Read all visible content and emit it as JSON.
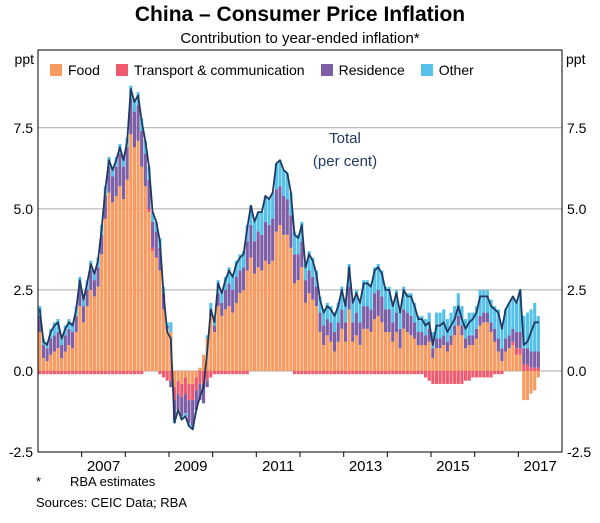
{
  "title": "China – Consumer Price Inflation",
  "subtitle": "Contribution to year-ended inflation*",
  "axis": {
    "unit_left": "ppt",
    "unit_right": "ppt"
  },
  "annotation": {
    "line1": "Total",
    "line2": "(per cent)"
  },
  "legend": {
    "items": [
      {
        "label": "Food",
        "color": "#F89B61"
      },
      {
        "label": "Transport & communication",
        "color": "#EF5A6E"
      },
      {
        "label": "Residence",
        "color": "#7C5FA5"
      },
      {
        "label": "Other",
        "color": "#56C1E8"
      }
    ]
  },
  "footnotes": {
    "marker": "*",
    "text": "RBA estimates",
    "sources": "Sources: CEIC Data; RBA"
  },
  "chart_data": {
    "type": "bar",
    "subtype": "stacked-bar-with-line",
    "title": "China – Consumer Price Inflation",
    "subtitle": "Contribution to year-ended inflation*",
    "ylabel": "ppt",
    "ylim": [
      -2.5,
      9.9
    ],
    "yticks": [
      -2.5,
      0.0,
      2.5,
      5.0,
      7.5
    ],
    "x_start": "2006-01",
    "x_end": "2017-06",
    "frequency": "monthly",
    "xtick_years": [
      2007,
      2009,
      2011,
      2013,
      2015,
      2017
    ],
    "grid": true,
    "legend_position": "top",
    "series": [
      {
        "name": "Food",
        "type": "bar",
        "color": "#F89B61",
        "values": [
          1.2,
          0.4,
          0.3,
          0.5,
          0.6,
          0.7,
          0.4,
          0.6,
          0.8,
          0.7,
          1.2,
          2.0,
          1.5,
          2.0,
          2.5,
          2.3,
          2.6,
          3.6,
          4.7,
          5.5,
          5.2,
          5.4,
          5.7,
          5.3,
          5.9,
          7.3,
          6.9,
          7.1,
          6.3,
          5.7,
          4.9,
          3.7,
          3.5,
          3.1,
          1.9,
          1.3,
          1.2,
          -0.5,
          -0.3,
          -0.4,
          -0.2,
          -0.4,
          -0.4,
          -0.2,
          0.1,
          0.5,
          1.0,
          1.7,
          1.2,
          2.0,
          1.7,
          1.9,
          2.0,
          1.8,
          2.1,
          2.4,
          2.5,
          3.1,
          3.5,
          3.0,
          3.2,
          3.1,
          3.4,
          3.3,
          3.4,
          4.3,
          4.5,
          4.2,
          4.2,
          3.8,
          2.7,
          2.8,
          3.2,
          2.1,
          2.4,
          2.2,
          2.0,
          1.2,
          0.8,
          1.1,
          0.9,
          0.6,
          0.9,
          1.3,
          0.9,
          1.9,
          0.9,
          1.1,
          0.8,
          1.3,
          1.3,
          1.2,
          1.6,
          1.7,
          1.5,
          1.2,
          1.2,
          0.9,
          1.2,
          0.7,
          1.3,
          1.2,
          1.1,
          1.0,
          0.8,
          0.8,
          0.8,
          0.9,
          0.4,
          0.7,
          0.7,
          0.8,
          0.6,
          0.8,
          1.1,
          1.4,
          1.1,
          0.7,
          0.8,
          0.8,
          1.0,
          1.4,
          1.5,
          1.5,
          1.2,
          0.9,
          0.6,
          0.3,
          0.6,
          0.7,
          0.8,
          0.5,
          0.5,
          -0.9,
          -0.9,
          -0.7,
          -0.6,
          -0.2
        ]
      },
      {
        "name": "Transport & communication",
        "type": "bar",
        "color": "#EF5A6E",
        "values": [
          -0.1,
          -0.1,
          -0.1,
          -0.1,
          -0.1,
          -0.1,
          -0.1,
          -0.1,
          -0.1,
          -0.1,
          -0.1,
          -0.1,
          -0.1,
          -0.1,
          -0.1,
          -0.1,
          -0.1,
          -0.1,
          -0.1,
          -0.1,
          -0.1,
          -0.1,
          -0.1,
          -0.1,
          -0.1,
          -0.1,
          -0.1,
          -0.1,
          -0.1,
          0.0,
          0.1,
          0.1,
          0.0,
          -0.1,
          -0.2,
          -0.3,
          -0.3,
          -0.4,
          -0.4,
          -0.4,
          -0.5,
          -0.5,
          -0.5,
          -0.4,
          -0.4,
          -0.4,
          -0.3,
          -0.2,
          -0.1,
          -0.1,
          -0.1,
          -0.1,
          -0.1,
          -0.1,
          -0.1,
          -0.1,
          -0.1,
          -0.1,
          0.0,
          0.0,
          0.0,
          0.0,
          0.0,
          0.0,
          0.0,
          0.0,
          0.0,
          0.0,
          0.0,
          0.0,
          -0.1,
          -0.1,
          -0.1,
          -0.1,
          -0.1,
          -0.1,
          -0.1,
          -0.1,
          -0.1,
          -0.1,
          -0.1,
          -0.1,
          -0.1,
          -0.1,
          -0.1,
          -0.1,
          -0.1,
          -0.1,
          -0.1,
          -0.1,
          -0.1,
          -0.1,
          -0.1,
          -0.1,
          -0.1,
          -0.1,
          -0.1,
          -0.1,
          -0.1,
          -0.1,
          -0.1,
          -0.1,
          -0.1,
          -0.1,
          -0.1,
          -0.1,
          -0.2,
          -0.3,
          -0.4,
          -0.4,
          -0.4,
          -0.4,
          -0.4,
          -0.4,
          -0.4,
          -0.4,
          -0.4,
          -0.3,
          -0.3,
          -0.2,
          -0.2,
          -0.2,
          -0.2,
          -0.2,
          -0.2,
          -0.1,
          -0.1,
          -0.1,
          0.0,
          0.0,
          0.1,
          0.2,
          0.2,
          0.2,
          0.2,
          0.1,
          0.1,
          0.1
        ]
      },
      {
        "name": "Residence",
        "type": "bar",
        "color": "#7C5FA5",
        "values": [
          0.5,
          0.4,
          0.4,
          0.5,
          0.5,
          0.5,
          0.4,
          0.5,
          0.5,
          0.5,
          0.5,
          0.6,
          0.5,
          0.5,
          0.6,
          0.5,
          0.6,
          0.6,
          0.7,
          0.8,
          0.8,
          0.9,
          1.0,
          1.0,
          1.0,
          1.1,
          1.1,
          1.1,
          1.1,
          1.0,
          0.9,
          0.8,
          0.8,
          0.7,
          0.5,
          0.1,
          -0.2,
          -0.6,
          -0.5,
          -0.6,
          -0.6,
          -0.7,
          -0.8,
          -0.6,
          -0.5,
          -0.6,
          -0.2,
          0.2,
          0.2,
          0.4,
          0.4,
          0.6,
          0.7,
          0.7,
          0.8,
          0.7,
          0.7,
          0.9,
          1.0,
          1.0,
          1.1,
          1.1,
          1.2,
          1.2,
          1.3,
          1.3,
          1.2,
          1.2,
          1.1,
          1.0,
          0.9,
          0.8,
          0.8,
          0.7,
          0.7,
          0.7,
          0.6,
          0.6,
          0.6,
          0.5,
          0.6,
          0.6,
          0.6,
          0.6,
          0.6,
          0.7,
          0.6,
          0.7,
          0.7,
          0.7,
          0.7,
          0.7,
          0.8,
          0.8,
          0.8,
          0.7,
          0.7,
          0.6,
          0.6,
          0.6,
          0.6,
          0.6,
          0.6,
          0.5,
          0.4,
          0.4,
          0.3,
          0.4,
          0.3,
          0.3,
          0.3,
          0.3,
          0.3,
          0.3,
          0.3,
          0.3,
          0.3,
          0.3,
          0.3,
          0.3,
          0.3,
          0.3,
          0.3,
          0.3,
          0.3,
          0.4,
          0.4,
          0.4,
          0.4,
          0.4,
          0.4,
          0.5,
          0.5,
          0.5,
          0.5,
          0.5,
          0.5,
          0.5
        ]
      },
      {
        "name": "Other",
        "type": "bar",
        "color": "#56C1E8",
        "values": [
          0.3,
          0.2,
          0.2,
          0.3,
          0.4,
          0.4,
          0.3,
          0.3,
          0.3,
          0.3,
          0.3,
          0.3,
          0.3,
          0.3,
          0.3,
          0.3,
          0.3,
          0.3,
          0.3,
          0.3,
          0.3,
          0.3,
          0.3,
          0.3,
          0.3,
          0.4,
          0.4,
          0.4,
          0.4,
          0.4,
          0.4,
          0.3,
          0.3,
          0.3,
          0.2,
          0.1,
          0.3,
          -0.1,
          0.0,
          -0.1,
          -0.1,
          -0.1,
          -0.1,
          0.0,
          0.0,
          0.0,
          0.1,
          0.2,
          0.2,
          0.4,
          0.4,
          0.4,
          0.5,
          0.5,
          0.5,
          0.5,
          0.5,
          0.5,
          0.6,
          0.6,
          0.6,
          0.7,
          0.8,
          0.8,
          0.8,
          0.8,
          0.8,
          0.8,
          0.8,
          0.7,
          0.7,
          0.6,
          0.6,
          0.5,
          0.6,
          0.6,
          0.5,
          0.5,
          0.5,
          0.5,
          0.5,
          0.6,
          0.6,
          0.7,
          0.6,
          0.7,
          0.7,
          0.7,
          0.7,
          0.8,
          0.8,
          0.8,
          0.8,
          0.8,
          0.8,
          0.7,
          0.7,
          0.6,
          0.7,
          0.6,
          0.7,
          0.6,
          0.7,
          0.6,
          0.5,
          0.5,
          0.5,
          0.5,
          0.5,
          0.8,
          0.8,
          0.8,
          0.7,
          0.7,
          0.6,
          0.7,
          0.6,
          0.6,
          0.7,
          0.7,
          0.7,
          0.8,
          0.7,
          0.7,
          0.7,
          0.7,
          0.9,
          0.7,
          0.9,
          1.0,
          1.0,
          0.9,
          1.3,
          1.0,
          1.1,
          1.3,
          1.5,
          1.1
        ]
      },
      {
        "name": "Total (per cent)",
        "type": "line",
        "color": "#1F3A63",
        "values": [
          1.9,
          0.9,
          0.8,
          1.2,
          1.4,
          1.5,
          1.0,
          1.3,
          1.5,
          1.4,
          1.9,
          2.8,
          2.2,
          2.7,
          3.3,
          3.0,
          3.4,
          4.4,
          5.6,
          6.5,
          6.2,
          6.5,
          6.9,
          6.5,
          7.1,
          8.7,
          8.3,
          8.5,
          7.7,
          7.1,
          6.3,
          4.9,
          4.6,
          4.0,
          2.4,
          1.2,
          1.0,
          -1.6,
          -1.2,
          -1.5,
          -1.4,
          -1.7,
          -1.8,
          -1.2,
          -0.8,
          -0.5,
          0.6,
          1.9,
          1.5,
          2.7,
          2.4,
          2.8,
          3.1,
          2.9,
          3.3,
          3.5,
          3.6,
          4.4,
          5.1,
          4.6,
          4.9,
          4.9,
          5.4,
          5.3,
          5.5,
          6.4,
          6.5,
          6.2,
          6.1,
          5.5,
          4.2,
          4.1,
          4.5,
          3.2,
          3.6,
          3.4,
          3.0,
          2.2,
          1.8,
          2.0,
          1.9,
          1.7,
          2.0,
          2.5,
          2.0,
          3.2,
          2.1,
          2.4,
          2.1,
          2.7,
          2.7,
          2.6,
          3.1,
          3.2,
          3.0,
          2.5,
          2.5,
          2.0,
          2.4,
          1.8,
          2.5,
          2.3,
          2.3,
          2.0,
          1.6,
          1.6,
          1.4,
          1.5,
          0.8,
          1.4,
          1.4,
          1.5,
          1.2,
          1.4,
          1.6,
          2.0,
          1.6,
          1.3,
          1.5,
          1.6,
          1.8,
          2.3,
          2.3,
          2.3,
          2.0,
          1.9,
          1.8,
          1.3,
          1.9,
          2.1,
          2.3,
          2.1,
          2.5,
          0.8,
          0.9,
          1.2,
          1.5,
          1.5
        ]
      }
    ]
  }
}
